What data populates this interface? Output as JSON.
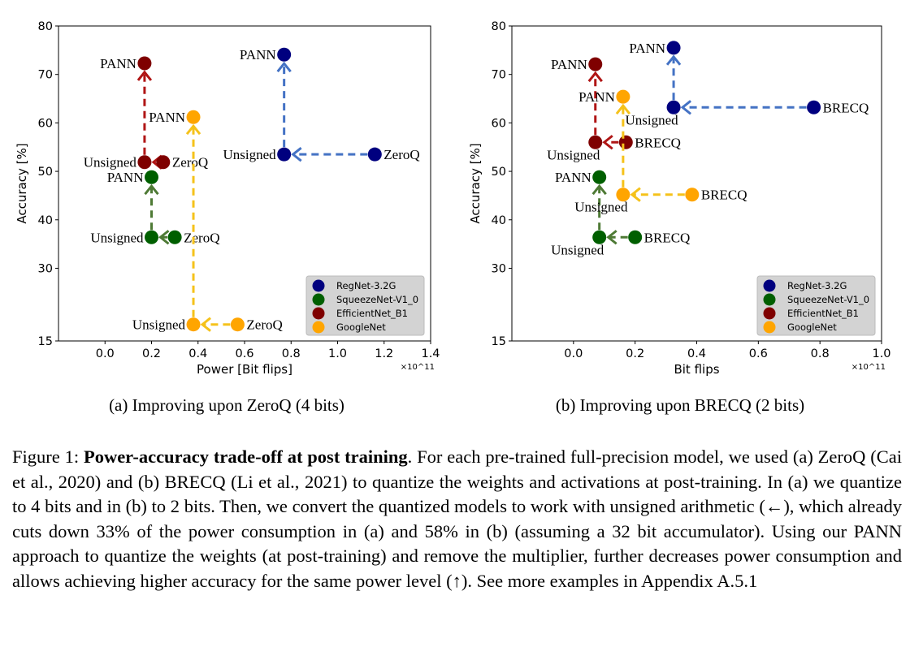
{
  "chart_data": [
    {
      "type": "scatter",
      "subtitle": "(a) Improving upon ZeroQ (4 bits)",
      "xlabel": "Power [Bit flips]",
      "ylabel": "Accuracy [%]",
      "x_multiplier": "×10^11",
      "xlim": [
        -0.2,
        1.4
      ],
      "ylim": [
        15,
        80
      ],
      "xticks": [
        "0.0",
        "0.2",
        "0.4",
        "0.6",
        "0.8",
        "1.0",
        "1.2",
        "1.4"
      ],
      "xtick_values": [
        0,
        0.2,
        0.4,
        0.6,
        0.8,
        1.0,
        1.2,
        1.4
      ],
      "yticks": [
        15,
        30,
        40,
        50,
        60,
        70,
        80
      ],
      "grid": false,
      "legend_placement": "bottom-right",
      "method_label": "ZeroQ",
      "series": [
        {
          "name": "RegNet-3.2G",
          "color": "#00007f",
          "arrow_color": "#4472c4",
          "points": [
            {
              "label": "ZeroQ",
              "x": 1.16,
              "y": 53.5
            },
            {
              "label": "Unsigned",
              "x": 0.77,
              "y": 53.5
            },
            {
              "label": "PANN",
              "x": 0.77,
              "y": 74.1
            }
          ]
        },
        {
          "name": "SqueezeNet-V1_0",
          "color": "#005f00",
          "arrow_color": "#4e7a35",
          "points": [
            {
              "label": "ZeroQ",
              "x": 0.3,
              "y": 36.4
            },
            {
              "label": "Unsigned",
              "x": 0.2,
              "y": 36.4
            },
            {
              "label": "PANN",
              "x": 0.2,
              "y": 48.8
            }
          ]
        },
        {
          "name": "EfficientNet_B1",
          "color": "#7f0000",
          "arrow_color": "#b01515",
          "points": [
            {
              "label": "ZeroQ",
              "x": 0.25,
              "y": 51.9
            },
            {
              "label": "Unsigned",
              "x": 0.17,
              "y": 51.9
            },
            {
              "label": "PANN",
              "x": 0.17,
              "y": 72.3
            }
          ]
        },
        {
          "name": "GoogleNet",
          "color": "#ffa500",
          "arrow_color": "#f5c21b",
          "points": [
            {
              "label": "ZeroQ",
              "x": 0.57,
              "y": 18.4
            },
            {
              "label": "Unsigned",
              "x": 0.38,
              "y": 18.4
            },
            {
              "label": "PANN",
              "x": 0.38,
              "y": 61.2
            }
          ]
        }
      ]
    },
    {
      "type": "scatter",
      "subtitle": "(b) Improving upon BRECQ (2 bits)",
      "xlabel": "Bit flips",
      "ylabel": "Accuracy [%]",
      "x_multiplier": "×10^11",
      "xlim": [
        -0.2,
        1.0
      ],
      "ylim": [
        15,
        80
      ],
      "xticks": [
        "0.0",
        "0.2",
        "0.4",
        "0.6",
        "0.8",
        "1.0"
      ],
      "xtick_values": [
        0,
        0.2,
        0.4,
        0.6,
        0.8,
        1.0
      ],
      "yticks": [
        15,
        30,
        40,
        50,
        60,
        70,
        80
      ],
      "grid": false,
      "legend_placement": "bottom-right",
      "method_label": "BRECQ",
      "series": [
        {
          "name": "RegNet-3.2G",
          "color": "#00007f",
          "arrow_color": "#4472c4",
          "points": [
            {
              "label": "BRECQ",
              "x": 0.78,
              "y": 63.2
            },
            {
              "label": "Unsigned",
              "x": 0.325,
              "y": 63.2
            },
            {
              "label": "PANN",
              "x": 0.325,
              "y": 75.5
            }
          ]
        },
        {
          "name": "SqueezeNet-V1_0",
          "color": "#005f00",
          "arrow_color": "#4e7a35",
          "points": [
            {
              "label": "BRECQ",
              "x": 0.2,
              "y": 36.4
            },
            {
              "label": "Unsigned",
              "x": 0.084,
              "y": 36.4
            },
            {
              "label": "PANN",
              "x": 0.084,
              "y": 48.8
            }
          ]
        },
        {
          "name": "EfficientNet_B1",
          "color": "#7f0000",
          "arrow_color": "#b01515",
          "points": [
            {
              "label": "BRECQ",
              "x": 0.17,
              "y": 56.0
            },
            {
              "label": "Unsigned",
              "x": 0.071,
              "y": 56.0
            },
            {
              "label": "PANN",
              "x": 0.071,
              "y": 72.1
            }
          ]
        },
        {
          "name": "GoogleNet",
          "color": "#ffa500",
          "arrow_color": "#f5c21b",
          "points": [
            {
              "label": "BRECQ",
              "x": 0.385,
              "y": 45.2
            },
            {
              "label": "Unsigned",
              "x": 0.161,
              "y": 45.2
            },
            {
              "label": "PANN",
              "x": 0.161,
              "y": 65.4
            }
          ]
        }
      ]
    }
  ],
  "caption": {
    "prefix": "Figure 1: ",
    "bold": "Power-accuracy trade-off at post training",
    "rest": ". For each pre-trained full-precision model, we used (a) ZeroQ (Cai et al., 2020) and (b) BRECQ (Li et al., 2021) to quantize the weights and activations at post-training. In (a) we quantize to 4 bits and in (b) to 2 bits. Then, we convert the quantized models to work with unsigned arithmetic (←), which already cuts down 33% of the power consumption in (a) and 58% in (b) (assuming a 32 bit accumulator). Using our PANN approach to quantize the weights (at post-training) and remove the multiplier, further decreases power consumption and allows achieving higher accuracy for the same power level (↑). See more examples in Appendix A.5.1"
  }
}
